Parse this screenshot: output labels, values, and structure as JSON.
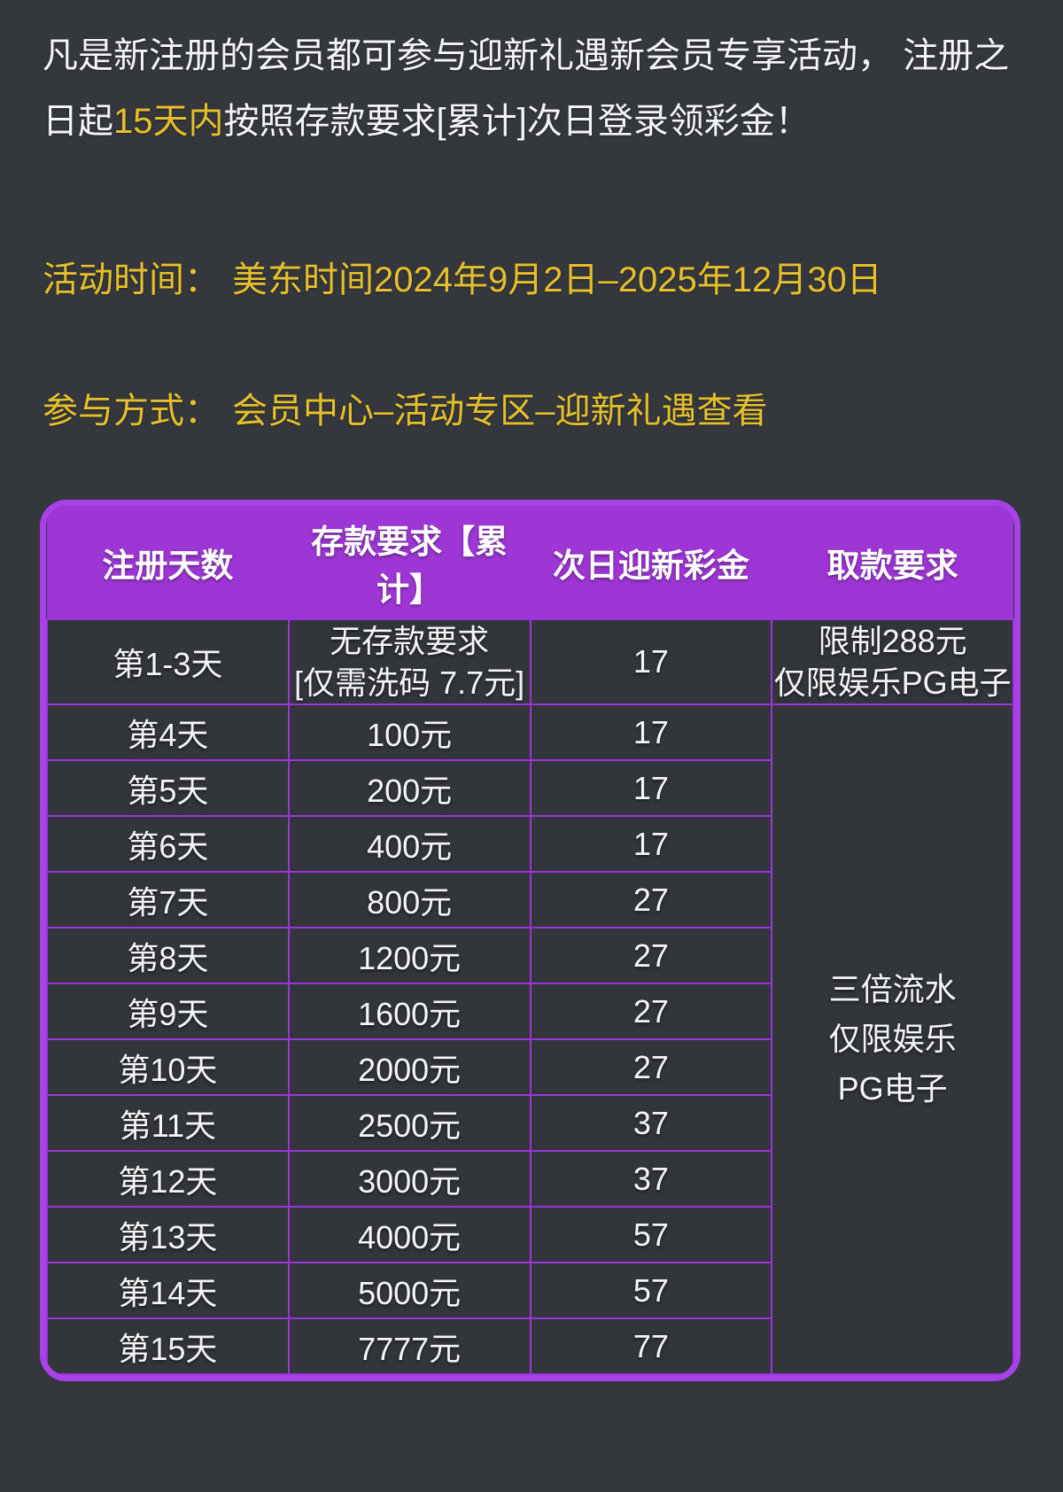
{
  "colors": {
    "page_bg": "#34373c",
    "text": "#f4f5f6",
    "gold": "#e6c02a",
    "table_outer_border": "#a841e8",
    "table_header_bg": "#9d36d4",
    "cell_border": "#9a34dc",
    "cell_bg": "#32353a"
  },
  "intro": {
    "text_before": "凡是新注册的会员都可参与迎新礼遇新会员专享活动， 注册之日起",
    "highlight": "15天内",
    "text_after": "按照存款要求[累计]次日登录领彩金！"
  },
  "event_time": {
    "label": "活动时间：",
    "value": "美东时间2024年9月2日–2025年12月30日"
  },
  "participation": {
    "label": "参与方式：",
    "value": "会员中心–活动专区–迎新礼遇查看"
  },
  "table": {
    "headers": [
      "注册天数",
      "存款要求【累计】",
      "次日迎新彩金",
      "取款要求"
    ],
    "rows": [
      {
        "day": "第1-3天",
        "deposit_lines": [
          "无存款要求",
          "[仅需洗码 7.7元]"
        ],
        "bonus": "17",
        "withdraw_lines": [
          "限制288元",
          "仅限娱乐PG电子"
        ]
      },
      {
        "day": "第4天",
        "deposit": "100元",
        "bonus": "17"
      },
      {
        "day": "第5天",
        "deposit": "200元",
        "bonus": "17"
      },
      {
        "day": "第6天",
        "deposit": "400元",
        "bonus": "17"
      },
      {
        "day": "第7天",
        "deposit": "800元",
        "bonus": "27"
      },
      {
        "day": "第8天",
        "deposit": "1200元",
        "bonus": "27"
      },
      {
        "day": "第9天",
        "deposit": "1600元",
        "bonus": "27"
      },
      {
        "day": "第10天",
        "deposit": "2000元",
        "bonus": "27"
      },
      {
        "day": "第11天",
        "deposit": "2500元",
        "bonus": "37"
      },
      {
        "day": "第12天",
        "deposit": "3000元",
        "bonus": "37"
      },
      {
        "day": "第13天",
        "deposit": "4000元",
        "bonus": "57"
      },
      {
        "day": "第14天",
        "deposit": "5000元",
        "bonus": "57"
      },
      {
        "day": "第15天",
        "deposit": "7777元",
        "bonus": "77"
      }
    ],
    "merged_withdraw_lines": [
      "三倍流水",
      "仅限娱乐",
      "PG电子"
    ]
  }
}
